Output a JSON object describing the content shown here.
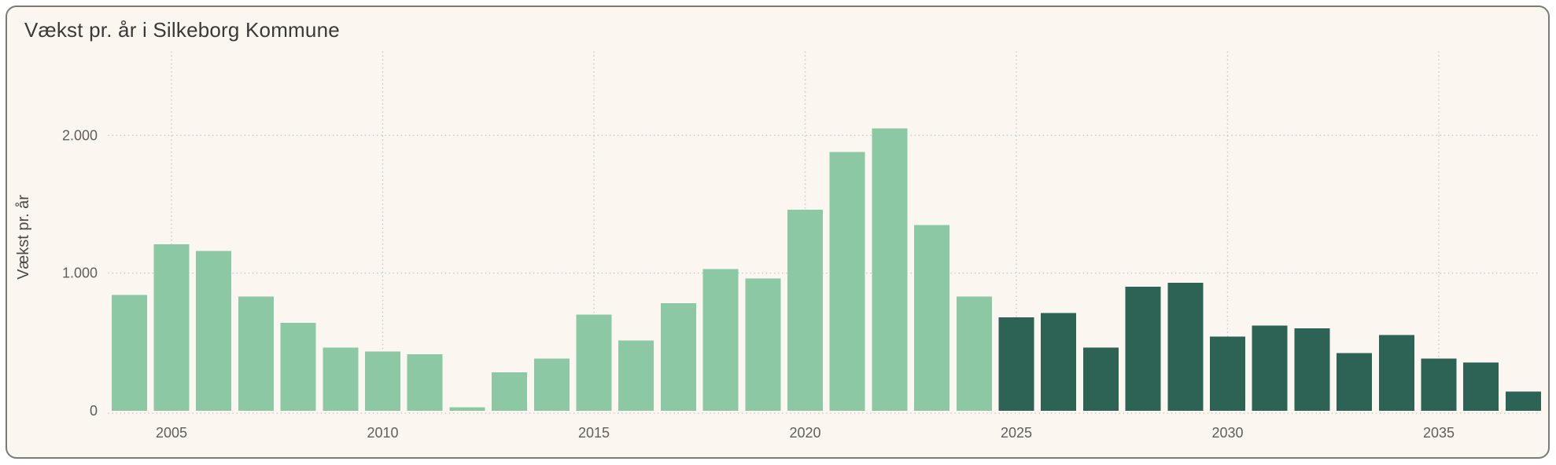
{
  "card": {
    "title": "Vækst pr. år i Silkeborg Kommune"
  },
  "colors": {
    "card_background": "#FCF6F1",
    "page_background": "#FFFFFF",
    "card_border": "#7A7A78",
    "historical_bar": "#8DC8A4",
    "forecast_bar": "#2D6355",
    "grid_dots": "#CBC7C3",
    "tick_text": "#605E5C",
    "title_text": "#3A3938"
  },
  "chart_data": {
    "type": "bar",
    "title": "Vækst pr. år i Silkeborg Kommune",
    "xlabel": "",
    "ylabel": "Vækst pr. år",
    "ylim": [
      0,
      2610
    ],
    "y_ticks": [
      0,
      1000,
      2000
    ],
    "y_tick_labels": [
      "0",
      "1.000",
      "2.000"
    ],
    "x_ticks": [
      2005,
      2010,
      2015,
      2020,
      2025,
      2030,
      2035
    ],
    "x_tick_labels": [
      "2005",
      "2010",
      "2015",
      "2020",
      "2025",
      "2030",
      "2035"
    ],
    "grid": "dotted-horizontal-and-vertical",
    "legend": "none",
    "categories": [
      2004,
      2005,
      2006,
      2007,
      2008,
      2009,
      2010,
      2011,
      2012,
      2013,
      2014,
      2015,
      2016,
      2017,
      2018,
      2019,
      2020,
      2021,
      2022,
      2023,
      2024,
      2025,
      2026,
      2027,
      2028,
      2029,
      2030,
      2031,
      2032,
      2033,
      2034,
      2035,
      2036,
      2037
    ],
    "values": [
      840,
      1210,
      1160,
      830,
      640,
      460,
      430,
      410,
      25,
      280,
      380,
      700,
      510,
      780,
      1030,
      960,
      1460,
      1880,
      2050,
      1350,
      830,
      680,
      710,
      460,
      900,
      930,
      540,
      620,
      600,
      420,
      550,
      380,
      350,
      140
    ],
    "color_segments": [
      {
        "color": "#8DC8A4",
        "from_year": 2004,
        "to_year": 2024
      },
      {
        "color": "#2D6355",
        "from_year": 2025,
        "to_year": 2037
      }
    ]
  }
}
